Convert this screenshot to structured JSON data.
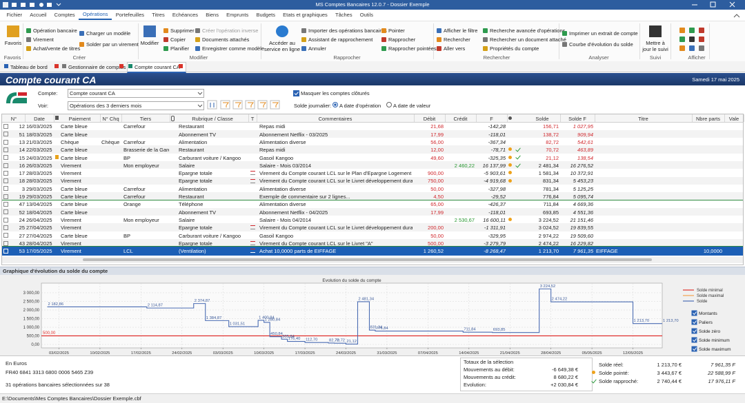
{
  "titlebar": {
    "title": "MS Comptes Bancaires 12.0.7 - Dossier Exemple"
  },
  "menu": [
    "Fichier",
    "Accueil",
    "Comptes",
    "Opérations",
    "Portefeuilles",
    "Titres",
    "Echéances",
    "Biens",
    "Emprunts",
    "Budgets",
    "Etats et graphiques",
    "Tâches",
    "Outils"
  ],
  "ribbon": {
    "groups": [
      {
        "label": "Favoris",
        "items": [
          "Favoris"
        ]
      },
      {
        "label": "Créer",
        "items": [
          "Opération bancaire",
          "Virement",
          "Achat/vente de titres",
          "Charger un modèle",
          "Solder par un virement"
        ]
      },
      {
        "label": "Modifier",
        "items": [
          "Modifier",
          "Supprimer",
          "Copier",
          "Planifier",
          "Créer l'opération inverse",
          "Documents attachés",
          "Enregistrer comme modèle"
        ]
      },
      {
        "label": "Rapprocher",
        "items": [
          "Accéder au service en ligne",
          "Importer des opérations bancaires",
          "Assistant de rapprochement",
          "Annuler",
          "Pointer",
          "Rapprocher",
          "Rapprocher pointées"
        ]
      },
      {
        "label": "Rechercher",
        "items": [
          "Afficher le filtre",
          "Rechercher",
          "Aller vers",
          "Recherche avancée d'opérations",
          "Rechercher un document attaché",
          "Propriétés du compte"
        ]
      },
      {
        "label": "Analyser",
        "items": [
          "Imprimer un extrait de compte",
          "Courbe d'évolution du solde"
        ]
      },
      {
        "label": "Suivi",
        "items": [
          "Mettre à jour le suivi"
        ]
      },
      {
        "label": "Afficher"
      }
    ]
  },
  "tabs": [
    "Tableau de bord",
    "Gestionnaire de comptes",
    "Compte courant CA"
  ],
  "banner": {
    "title": "Compte courant CA",
    "date": "Samedi 17 mai 2025"
  },
  "form": {
    "account_label": "Compte:",
    "account": "Compte courant CA",
    "view_label": "Voir:",
    "view": "Opérations des 3 derniers mois",
    "hide_closed": "Masquer les comptes clôturés",
    "daily_balance_label": "Solde journalier:",
    "by_operation_date": "A date d'opération",
    "by_value_date": "A date de valeur"
  },
  "table": {
    "columns": [
      "N°",
      "Date",
      "Paiement",
      "N° Chq",
      "Tiers",
      "Rubrique / Classe",
      "T",
      "Commentaires",
      "Débit",
      "Crédit",
      "F",
      "Solde",
      "Solde F",
      "Titre",
      "Nbre parts",
      "Vale"
    ],
    "rows": [
      {
        "num": "12",
        "date": "16/03/2025",
        "payment": "Carte bleue",
        "payee": "Carrefour",
        "category": "Restaurant",
        "comment": "Repas midi",
        "debit": "21,68",
        "f": "-142,28",
        "balance": "156,71",
        "balance_f": "1 027,95"
      },
      {
        "num": "51",
        "date": "18/03/2025",
        "payment": "Carte bleue",
        "category": "Abonnement TV",
        "comment": "Abonnement Netflix - 03/2025",
        "debit": "17,99",
        "f": "-118,01",
        "balance": "138,72",
        "balance_f": "909,94"
      },
      {
        "num": "13",
        "date": "21/03/2025",
        "payment": "Chèque",
        "cheque": "Chèque ...",
        "payee": "Carrefour",
        "category": "Alimentation",
        "comment": "Alimentation diverse",
        "debit": "56,00",
        "f": "-367,34",
        "balance": "82,72",
        "balance_f": "542,61"
      },
      {
        "num": "14",
        "date": "22/03/2025",
        "payment": "Carte bleue",
        "payee": "Brasserie de la Gare",
        "category": "Restaurant",
        "comment": "Repas midi",
        "debit": "12,00",
        "f": "-78,71",
        "pointed": true,
        "reconciled": true,
        "balance": "70,72",
        "balance_f": "463,89"
      },
      {
        "num": "15",
        "date": "24/03/2025",
        "flag": true,
        "payment": "Carte bleue",
        "payee": "BP",
        "category": "Carburant voiture / Kangoo",
        "comment": "Gasoil Kangoo",
        "debit": "49,60",
        "f": "-325,35",
        "pointed": true,
        "reconciled": true,
        "balance": "21,12",
        "balance_f": "138,54"
      },
      {
        "num": "16",
        "date": "26/03/2025",
        "payment": "Virement",
        "payee": "Mon employeur",
        "category": "Salaire",
        "comment": "Salaire - Mois 03/2014",
        "credit": "2 460,22",
        "f": "16 137,99",
        "pointed": true,
        "reconciled": true,
        "balance": "2 481,34",
        "balance_f": "16 276,52"
      },
      {
        "num": "17",
        "date": "28/03/2025",
        "payment": "Virement",
        "category": "Epargne totale",
        "transfer": true,
        "comment": "Virement du Compte courant LCL sur le Plan d'Epargne Logement",
        "debit": "900,00",
        "f": "-5 903,61",
        "pointed": true,
        "balance": "1 581,34",
        "balance_f": "10 372,91"
      },
      {
        "num": "18",
        "date": "28/03/2025",
        "payment": "Virement",
        "category": "Epargne totale",
        "transfer": true,
        "comment": "Virement du Compte courant LCL sur le Livret développement durable",
        "debit": "750,00",
        "f": "-4 919,68",
        "pointed": true,
        "balance": "831,34",
        "balance_f": "5 453,23"
      },
      {
        "num": "3",
        "date": "29/03/2025",
        "payment": "Carte bleue",
        "payee": "Carrefour",
        "category": "Alimentation",
        "comment": "Alimentation diverse",
        "debit": "50,00",
        "f": "-327,98",
        "balance": "781,34",
        "balance_f": "5 125,25"
      },
      {
        "num": "19",
        "date": "29/03/2025",
        "payment": "Carte bleue",
        "payee": "Carrefour",
        "category": "Restaurant",
        "comment": "Exemple de commentaire sur 2 lignes...",
        "debit": "4,50",
        "f": "-29,52",
        "balance": "776,84",
        "balance_f": "5 095,74"
      },
      {
        "num": "47",
        "date": "13/04/2025",
        "payment": "Carte bleue",
        "payee": "Orange",
        "category": "Téléphone",
        "comment": "Alimentation diverse",
        "debit": "65,00",
        "f": "-426,37",
        "balance": "711,84",
        "balance_f": "4 669,36"
      },
      {
        "num": "52",
        "date": "18/04/2025",
        "payment": "Carte bleue",
        "category": "Abonnement TV",
        "comment": "Abonnement Netflix - 04/2025",
        "debit": "17,99",
        "f": "-118,01",
        "balance": "693,85",
        "balance_f": "4 551,36"
      },
      {
        "num": "24",
        "date": "26/04/2025",
        "payment": "Virement",
        "payee": "Mon employeur",
        "category": "Salaire",
        "comment": "Salaire - Mois 04/2014",
        "credit": "2 530,67",
        "f": "16 600,11",
        "pointed": true,
        "balance": "3 224,52",
        "balance_f": "21 151,46"
      },
      {
        "num": "25",
        "date": "27/04/2025",
        "payment": "Virement",
        "category": "Epargne totale",
        "transfer": true,
        "comment": "Virement du Compte courant LCL sur le Livret développement durable",
        "debit": "200,00",
        "f": "-1 311,91",
        "balance": "3 024,52",
        "balance_f": "19 839,55"
      },
      {
        "num": "27",
        "date": "27/04/2025",
        "payment": "Carte bleue",
        "payee": "BP",
        "category": "Carburant voiture / Kangoo",
        "comment": "Gasoil Kangoo",
        "debit": "50,00",
        "f": "-329,95",
        "balance": "2 974,22",
        "balance_f": "19 509,60"
      },
      {
        "num": "43",
        "date": "28/04/2025",
        "payment": "Virement",
        "category": "Epargne totale",
        "transfer": true,
        "comment": "Virement du Compte courant LCL sur le Livret \"A\"",
        "debit": "500,00",
        "f": "-3 279,79",
        "balance": "2 474,22",
        "balance_f": "16 229,82"
      },
      {
        "num": "53",
        "date": "17/05/2025",
        "payment": "Virement",
        "payee": "LCL",
        "category": "(Ventilation)",
        "transfer": true,
        "comment": "Achat 10,0000 parts de EIFFAGE",
        "debit": "1 260,52",
        "f": "-8 268,47",
        "balance": "1 213,70",
        "balance_f": "7 961,35",
        "title": "EIFFAGE",
        "shares": "10,0000",
        "selected": true
      }
    ]
  },
  "chart_panel": {
    "title": "Graphique d'évolution du solde du compte"
  },
  "balance_chart": {
    "type": "line",
    "title": "Evolution du solde du compte",
    "x": [
      "01/02/2025",
      "18/02/2025",
      "26/02/2025",
      "28/02/2025",
      "04/03/2025",
      "09/03/2025",
      "10/03/2025",
      "11/03/2025",
      "13/03/2025",
      "14/03/2025",
      "17/03/2025",
      "21/03/2025",
      "22/03/2025",
      "24/03/2025",
      "26/03/2025",
      "28/03/2025",
      "29/03/2025",
      "13/04/2025",
      "18/04/2025",
      "26/04/2025",
      "28/04/2025",
      "12/05/2025",
      "17/05/2025"
    ],
    "series": [
      {
        "name": "Solde",
        "color": "#4a6cb3",
        "values": [
          2182.86,
          2114.87,
          2374.87,
          1384.87,
          1031.51,
          1400.84,
          1280.84,
          450.84,
          305.84,
          176.4,
          112.7,
          82.72,
          70.72,
          21.12,
          2481.34,
          831.34,
          776.84,
          711.84,
          693.85,
          3224.52,
          2474.22,
          1213.7,
          1213.7
        ],
        "value_labels": [
          "2 182,86",
          "2 114,87",
          "2 374,87",
          "1 384,87",
          "1 031,51",
          "1 400,84",
          "1 280,84",
          "450,84",
          "305,84",
          "176,40",
          "112,70",
          "82,72",
          "70,72",
          "21,12",
          "2 481,34",
          "831,34",
          "776,84",
          "711,84",
          "693,85",
          "3 224,52",
          "2 474,22",
          "1 213,70",
          "1 213,70"
        ]
      }
    ],
    "thresholds": [
      {
        "name": "Solde minimal",
        "color": "#e0302c",
        "value": 500,
        "value_label": "500,00"
      },
      {
        "name": "Solde maximal",
        "color": "#f2a450"
      }
    ],
    "xlim": [
      "31/01/2025",
      "17/05/2025"
    ],
    "xticks": [
      "03/02/2025",
      "10/02/2025",
      "17/02/2025",
      "24/02/2025",
      "03/03/2025",
      "10/03/2025",
      "17/03/2025",
      "24/03/2025",
      "31/03/2025",
      "07/04/2025",
      "14/04/2025",
      "21/04/2025",
      "28/04/2025",
      "05/05/2025",
      "12/05/2025"
    ],
    "ylim": [
      -200,
      3560
    ],
    "yticks": [
      {
        "value": 0,
        "label": "0,00"
      },
      {
        "value": 500,
        "label": "500,00"
      },
      {
        "value": 1000,
        "label": "1 000,00"
      },
      {
        "value": 1500,
        "label": "1 500,00"
      },
      {
        "value": 2000,
        "label": "2 000,00"
      },
      {
        "value": 2500,
        "label": "2 500,00"
      },
      {
        "value": 3000,
        "label": "3 000,00"
      }
    ],
    "grid": true,
    "options": [
      {
        "label": "Montants",
        "checked": true
      },
      {
        "label": "Paliers",
        "checked": true
      },
      {
        "label": "Solde zéro",
        "checked": true
      },
      {
        "label": "Solde minimum",
        "checked": true
      },
      {
        "label": "Solde maximum",
        "checked": true
      }
    ]
  },
  "footer": {
    "currency": "En Euros",
    "iban": "FR40 6841 3313 6800 0006 5465 Z39",
    "selection_count": "31 opérations bancaires sélectionnées sur 38",
    "totals": {
      "title": "Totaux de la sélection",
      "rows": [
        [
          "Mouvements au débit:",
          "-6 649,38 €"
        ],
        [
          "Mouvements au crédit:",
          "8 680,22 €"
        ],
        [
          "Evolution:",
          "+2 030,84 €"
        ]
      ]
    },
    "balances": [
      [
        "Solde réel:",
        "1 213,70 €",
        "7 961,35 F"
      ],
      [
        "Solde pointé:",
        "3 443,67 €",
        "22 588,99 F"
      ],
      [
        "Solde rapproché:",
        "2 740,44 €",
        "17 976,11 F"
      ]
    ]
  },
  "statusbar": {
    "path": "E:\\Documents\\Mes Comptes Bancaires\\Dossier Exemple.cbf"
  }
}
